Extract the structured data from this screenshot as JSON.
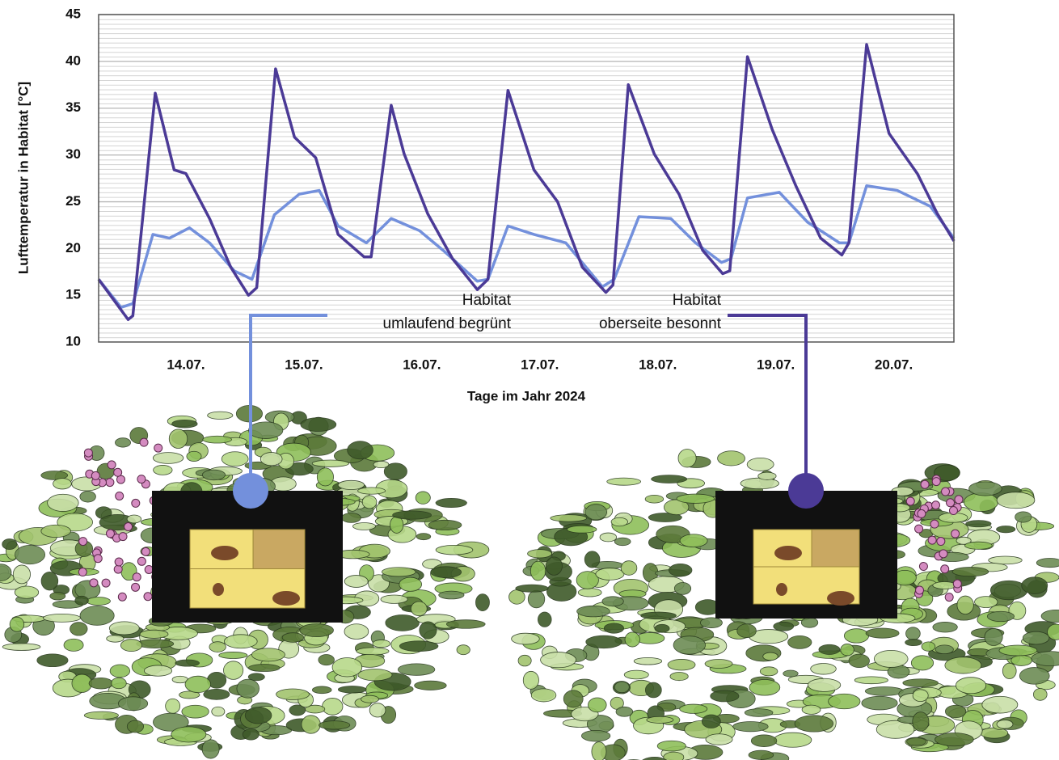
{
  "chart_data": {
    "type": "line",
    "x_label": "Tage im Jahr 2024",
    "y_label": "Lufttemperatur in Habitat [°C]",
    "xlim": [
      13.26,
      20.51
    ],
    "xticks": [
      {
        "value": 14,
        "label": "14.07."
      },
      {
        "value": 15,
        "label": "15.07."
      },
      {
        "value": 16,
        "label": "16.07."
      },
      {
        "value": 17,
        "label": "17.07."
      },
      {
        "value": 18,
        "label": "18.07."
      },
      {
        "value": 19,
        "label": "19.07."
      },
      {
        "value": 20,
        "label": "20.07."
      }
    ],
    "ylim": [
      10,
      45
    ],
    "yticks": [
      10,
      15,
      20,
      25,
      30,
      35,
      40,
      45
    ],
    "grid": true,
    "series": [
      {
        "label": [
          "Habitat",
          "umlaufend begrünt"
        ],
        "color": "#7390dc",
        "x": [
          13.26,
          13.45,
          13.55,
          13.72,
          13.86,
          14.03,
          14.2,
          14.41,
          14.56,
          14.75,
          14.96,
          15.13,
          15.29,
          15.53,
          15.74,
          15.98,
          16.18,
          16.47,
          16.56,
          16.73,
          16.95,
          17.22,
          17.53,
          17.63,
          17.84,
          18.11,
          18.32,
          18.54,
          18.62,
          18.76,
          19.03,
          19.27,
          19.54,
          19.62,
          19.77,
          20.03,
          20.31,
          20.51
        ],
        "values": [
          16.7,
          13.7,
          14.1,
          21.5,
          21.1,
          22.2,
          20.6,
          17.6,
          16.7,
          23.6,
          25.8,
          26.2,
          22.4,
          20.6,
          23.2,
          21.9,
          19.8,
          16.5,
          16.7,
          22.4,
          21.5,
          20.6,
          15.9,
          16.7,
          23.4,
          23.2,
          20.6,
          18.5,
          18.9,
          25.4,
          26.0,
          22.8,
          20.6,
          20.6,
          26.7,
          26.2,
          24.5,
          21.1
        ]
      },
      {
        "label": [
          "Habitat",
          "oberseite besonnt"
        ],
        "color": "#4b3a96",
        "x": [
          13.26,
          13.51,
          13.55,
          13.74,
          13.9,
          14.0,
          14.2,
          14.38,
          14.53,
          14.6,
          14.76,
          14.92,
          15.1,
          15.29,
          15.51,
          15.57,
          15.74,
          15.85,
          16.05,
          16.26,
          16.47,
          16.56,
          16.73,
          16.95,
          17.15,
          17.36,
          17.56,
          17.62,
          17.75,
          17.97,
          18.18,
          18.38,
          18.55,
          18.61,
          18.76,
          18.97,
          19.17,
          19.38,
          19.56,
          19.62,
          19.77,
          19.96,
          20.2,
          20.37,
          20.51
        ],
        "values": [
          16.7,
          12.4,
          12.8,
          36.6,
          28.4,
          28.0,
          23.2,
          18.0,
          15.0,
          15.8,
          39.2,
          31.9,
          29.7,
          21.5,
          19.1,
          19.1,
          35.3,
          30.1,
          23.7,
          18.9,
          15.6,
          16.7,
          36.9,
          28.4,
          25.0,
          18.0,
          15.3,
          16.1,
          37.5,
          30.1,
          25.8,
          19.8,
          17.3,
          17.6,
          40.5,
          32.7,
          26.7,
          21.1,
          19.3,
          20.6,
          41.8,
          32.3,
          28.0,
          23.7,
          20.8
        ]
      }
    ]
  }
}
